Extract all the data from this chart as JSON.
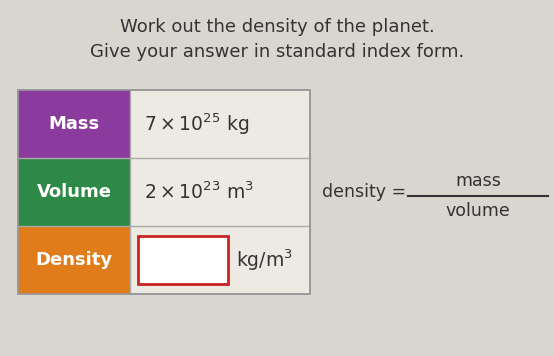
{
  "title_line1": "Work out the density of the planet.",
  "title_line2": "Give your answer in standard index form.",
  "title_fontsize": 13,
  "title_color": "#333333",
  "bg_color": "#d9d6d0",
  "table_bg": "#edeae4",
  "rows": [
    {
      "label": "Mass",
      "label_color": "#8b3a9e",
      "value_text": "$7 \\times 10^{25}$ kg",
      "has_input_box": false
    },
    {
      "label": "Volume",
      "label_color": "#2d8a46",
      "value_text": "$2 \\times 10^{23}$ m$^3$",
      "has_input_box": false
    },
    {
      "label": "Density",
      "label_color": "#e07c1a",
      "value_text": "kg/m$^3$",
      "has_input_box": true
    }
  ],
  "formula_color": "#333333",
  "input_box_color": "#cc2222",
  "label_fontsize": 13,
  "value_fontsize": 13.5,
  "formula_fontsize": 12.5
}
